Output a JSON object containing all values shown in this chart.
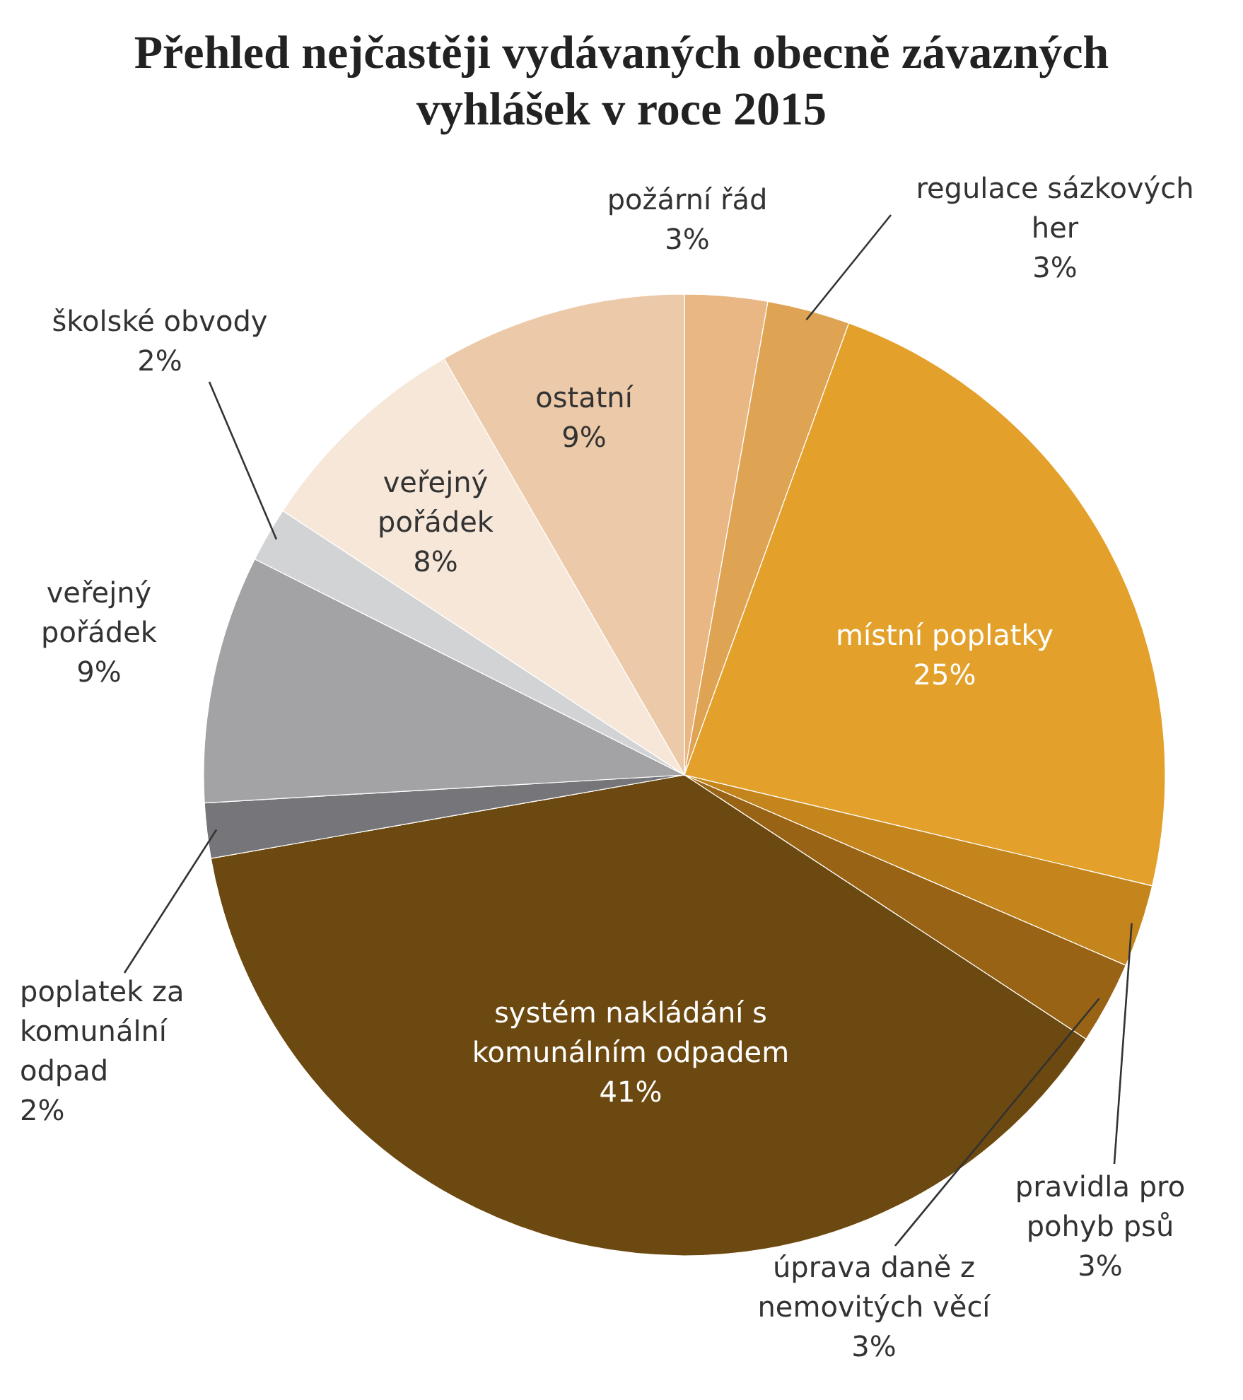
{
  "chart_data": {
    "type": "pie",
    "title": "Přehled nejčastěji vydávaných obecně závazných vyhlášek v roce 2015",
    "categories": [
      "požární řád",
      "regulace sázkových her",
      "místní poplatky",
      "pravidla pro pohyb psů",
      "úprava daně z nemovitých věcí",
      "systém nakládání s komunálním odpadem",
      "poplatek za komunální odpad",
      "veřejný pořádek",
      "školské obvody",
      "veřejný pořádek",
      "ostatní"
    ],
    "values": [
      3,
      3,
      25,
      3,
      3,
      41,
      2,
      9,
      2,
      8,
      9
    ],
    "value_labels": [
      "3%",
      "3%",
      "25%",
      "3%",
      "3%",
      "41%",
      "2%",
      "9%",
      "2%",
      "8%",
      "9%"
    ],
    "colors": [
      "#e9b784",
      "#dfa354",
      "#e3a12c",
      "#c4861c",
      "#986314",
      "#6c4910",
      "#76767a",
      "#a3a3a6",
      "#d2d3d5",
      "#f6e7d9",
      "#ecc9a8"
    ],
    "legend": false
  }
}
